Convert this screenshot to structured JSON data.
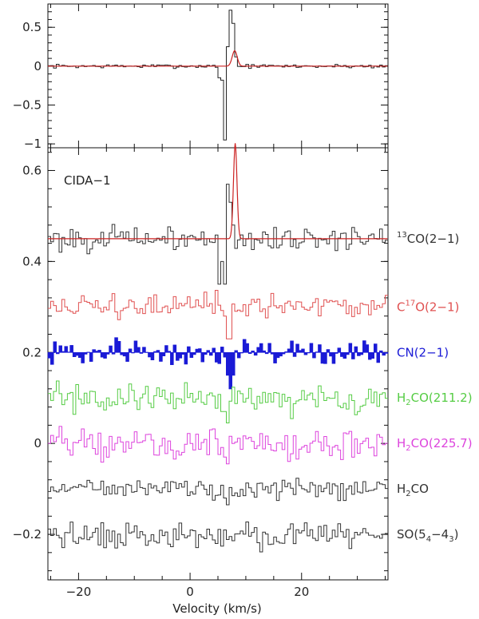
{
  "chart_data": [
    {
      "type": "line",
      "panel": "top",
      "xlim": [
        -25.5,
        35.5
      ],
      "ylim": [
        -1.05,
        0.8
      ],
      "yticks": [
        0.5,
        0,
        -0.5,
        -1
      ],
      "ytick_labels": [
        "0.5",
        "0",
        "−0.5",
        "−1"
      ],
      "grid": false,
      "series": [
        {
          "role": "observed",
          "color": "#222222",
          "baseline": 0,
          "noise": 0.012,
          "features": [
            {
              "x": 5.5,
              "y": -0.15
            },
            {
              "x": 6.0,
              "y": -0.18
            },
            {
              "x": 6.5,
              "y": -0.95
            },
            {
              "x": 7.0,
              "y": 0.25
            },
            {
              "x": 7.5,
              "y": 0.72
            },
            {
              "x": 8.0,
              "y": 0.55
            },
            {
              "x": 8.5,
              "y": 0.12
            }
          ]
        },
        {
          "role": "model",
          "color": "#cc2222",
          "baseline": 0,
          "peak_x": 8.0,
          "peak_y": 0.2,
          "sigma": 0.45
        }
      ]
    },
    {
      "type": "line",
      "panel": "bottom",
      "annotation": "CIDA−1",
      "xlabel": "Velocity (km/s)",
      "xlim": [
        -25.5,
        35.5
      ],
      "ylim": [
        -0.3,
        0.65
      ],
      "xticks": [
        -20,
        0,
        20
      ],
      "xtick_labels": [
        "−20",
        "0",
        "20"
      ],
      "yticks": [
        0.6,
        0.4,
        0.2,
        0,
        -0.2
      ],
      "ytick_labels": [
        "0.6",
        "0.4",
        "0.2",
        "0",
        "−0.2"
      ],
      "grid": false,
      "series": [
        {
          "label_main": "13CO(2−1)",
          "label_parts": [
            {
              "t": "13",
              "s": "sup"
            },
            {
              "t": "CO(2−1)"
            }
          ],
          "color": "#333333",
          "offset": 0.45,
          "noise": 0.013,
          "fill": false,
          "features": [
            {
              "x": 5.5,
              "y": 0.35
            },
            {
              "x": 6.0,
              "y": 0.4
            },
            {
              "x": 6.5,
              "y": 0.35
            },
            {
              "x": 7.0,
              "y": 0.57
            },
            {
              "x": 7.5,
              "y": 0.53
            },
            {
              "x": 8.0,
              "y": 0.48
            }
          ],
          "model": {
            "color": "#cc2222",
            "peak_x": 8.1,
            "peak_y": 0.66,
            "sigma": 0.32
          }
        },
        {
          "label_parts": [
            {
              "t": "C"
            },
            {
              "t": "17",
              "s": "sup"
            },
            {
              "t": "O(2−1)"
            }
          ],
          "color": "#e05050",
          "offset": 0.3,
          "noise": 0.014,
          "fill": false,
          "features": [
            {
              "x": 6.5,
              "y": 0.28
            },
            {
              "x": 7.0,
              "y": 0.23
            },
            {
              "x": 7.5,
              "y": 0.23
            }
          ]
        },
        {
          "label_parts": [
            {
              "t": "CN(2−1)"
            }
          ],
          "color": "#1a1ad6",
          "offset": 0.2,
          "noise": 0.015,
          "fill": true,
          "features": [
            {
              "x": 6.5,
              "y": 0.19
            },
            {
              "x": 7.0,
              "y": 0.15
            },
            {
              "x": 7.5,
              "y": 0.12
            },
            {
              "x": 8.0,
              "y": 0.15
            }
          ]
        },
        {
          "label_parts": [
            {
              "t": "H"
            },
            {
              "t": "2",
              "s": "sub"
            },
            {
              "t": "CO(211.2)"
            }
          ],
          "color": "#55cc44",
          "offset": 0.1,
          "noise": 0.016,
          "fill": false,
          "features": [
            {
              "x": 6.5,
              "y": 0.07
            },
            {
              "x": 7.0,
              "y": 0.045
            }
          ]
        },
        {
          "label_parts": [
            {
              "t": "H"
            },
            {
              "t": "2",
              "s": "sub"
            },
            {
              "t": "CO(225.7)"
            }
          ],
          "color": "#dd44dd",
          "offset": 0.0,
          "noise": 0.017,
          "fill": false,
          "features": [
            {
              "x": 6.5,
              "y": -0.03
            },
            {
              "x": 7.0,
              "y": -0.045
            }
          ]
        },
        {
          "label_parts": [
            {
              "t": "H"
            },
            {
              "t": "2",
              "s": "sub"
            },
            {
              "t": "CO"
            }
          ],
          "color": "#333333",
          "offset": -0.1,
          "noise": 0.01,
          "fill": false,
          "features": [
            {
              "x": 6.5,
              "y": -0.12
            },
            {
              "x": 7.0,
              "y": -0.135
            }
          ]
        },
        {
          "label_parts": [
            {
              "t": "SO(5"
            },
            {
              "t": "4",
              "s": "sub"
            },
            {
              "t": "−4"
            },
            {
              "t": "3",
              "s": "sub"
            },
            {
              "t": ")"
            }
          ],
          "color": "#333333",
          "offset": -0.2,
          "noise": 0.014,
          "fill": false,
          "features": []
        }
      ]
    }
  ]
}
